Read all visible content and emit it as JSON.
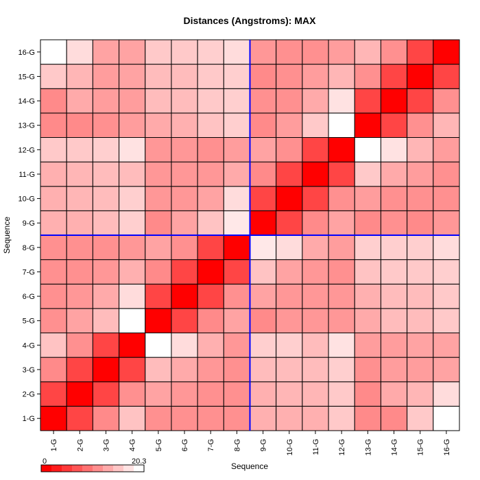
{
  "chart_data": {
    "type": "heatmap",
    "title": "Distances (Angstroms):  MAX",
    "xlabel": "Sequence",
    "ylabel": "Sequence",
    "x_categories": [
      "1-G",
      "2-G",
      "3-G",
      "4-G",
      "5-G",
      "6-G",
      "7-G",
      "8-G",
      "9-G",
      "10-G",
      "11-G",
      "12-G",
      "13-G",
      "14-G",
      "15-G",
      "16-G"
    ],
    "y_categories": [
      "1-G",
      "2-G",
      "3-G",
      "4-G",
      "5-G",
      "6-G",
      "7-G",
      "8-G",
      "9-G",
      "10-G",
      "11-G",
      "12-G",
      "13-G",
      "14-G",
      "15-G",
      "16-G"
    ],
    "values": [
      [
        0.0,
        5.5,
        11.0,
        15.5,
        11.5,
        11.5,
        11.5,
        11.5,
        14.0,
        14.0,
        14.0,
        16.0,
        11.0,
        11.0,
        16.0,
        20.3
      ],
      [
        5.5,
        0.0,
        5.5,
        11.5,
        13.0,
        12.0,
        11.5,
        11.5,
        14.0,
        14.5,
        14.5,
        16.0,
        11.0,
        13.5,
        14.5,
        17.5
      ],
      [
        11.0,
        5.5,
        0.0,
        5.5,
        15.0,
        13.5,
        12.0,
        11.5,
        15.0,
        15.0,
        15.0,
        16.5,
        11.5,
        12.5,
        12.5,
        13.0
      ],
      [
        15.5,
        11.5,
        5.5,
        0.0,
        20.3,
        17.5,
        14.0,
        12.0,
        16.5,
        16.5,
        15.0,
        18.0,
        12.5,
        12.5,
        13.0,
        13.0
      ],
      [
        11.5,
        13.0,
        15.0,
        20.3,
        0.0,
        5.5,
        11.0,
        13.0,
        11.0,
        12.0,
        12.0,
        12.0,
        13.5,
        15.0,
        15.0,
        16.0
      ],
      [
        11.5,
        12.0,
        13.5,
        17.5,
        5.5,
        0.0,
        5.5,
        11.5,
        13.0,
        12.0,
        12.0,
        12.0,
        14.0,
        15.0,
        15.0,
        16.0
      ],
      [
        11.5,
        11.5,
        12.0,
        14.0,
        11.0,
        5.5,
        0.0,
        5.5,
        15.5,
        13.0,
        12.0,
        11.5,
        15.5,
        16.0,
        16.0,
        16.5
      ],
      [
        11.5,
        11.5,
        11.5,
        12.0,
        13.0,
        11.5,
        5.5,
        0.0,
        18.5,
        17.5,
        13.5,
        12.5,
        16.5,
        16.5,
        16.5,
        17.5
      ],
      [
        14.0,
        14.0,
        15.0,
        16.5,
        11.0,
        13.0,
        15.5,
        18.5,
        0.0,
        5.5,
        11.0,
        13.0,
        11.0,
        11.5,
        11.0,
        12.0
      ],
      [
        14.0,
        14.5,
        15.0,
        16.5,
        12.0,
        12.0,
        13.0,
        17.5,
        5.5,
        0.0,
        5.5,
        11.5,
        12.5,
        11.5,
        11.5,
        11.5
      ],
      [
        14.0,
        14.5,
        15.0,
        15.0,
        12.0,
        12.0,
        12.0,
        13.5,
        11.0,
        5.5,
        0.0,
        5.5,
        16.0,
        13.5,
        12.5,
        11.5
      ],
      [
        16.0,
        16.0,
        16.5,
        18.0,
        12.0,
        12.0,
        11.5,
        12.5,
        13.0,
        11.5,
        5.5,
        0.0,
        20.3,
        18.0,
        14.5,
        12.5
      ],
      [
        11.0,
        11.0,
        11.5,
        12.5,
        13.5,
        14.0,
        15.5,
        16.5,
        11.0,
        12.5,
        16.0,
        20.3,
        0.0,
        5.5,
        11.5,
        14.5
      ],
      [
        11.0,
        13.5,
        12.5,
        12.5,
        15.0,
        15.0,
        16.0,
        16.5,
        11.5,
        11.5,
        13.5,
        18.0,
        5.5,
        0.0,
        5.5,
        11.5
      ],
      [
        16.0,
        14.5,
        12.5,
        13.0,
        15.0,
        15.0,
        16.0,
        16.5,
        11.0,
        11.5,
        12.5,
        14.5,
        11.5,
        5.5,
        0.0,
        5.5
      ],
      [
        20.3,
        17.5,
        13.0,
        13.0,
        16.0,
        16.0,
        16.5,
        17.5,
        12.0,
        11.5,
        11.5,
        12.5,
        14.5,
        11.5,
        5.5,
        0.0
      ]
    ],
    "value_range": [
      0,
      20.3
    ],
    "color_scale": {
      "low": "#ff0000",
      "high": "#ffffff"
    },
    "divider_color": "#0000ff",
    "dividers_after_index": 8,
    "legend": {
      "min_label": "0",
      "max_label": "20.3",
      "placement": "bottom-left"
    },
    "grid": true
  }
}
